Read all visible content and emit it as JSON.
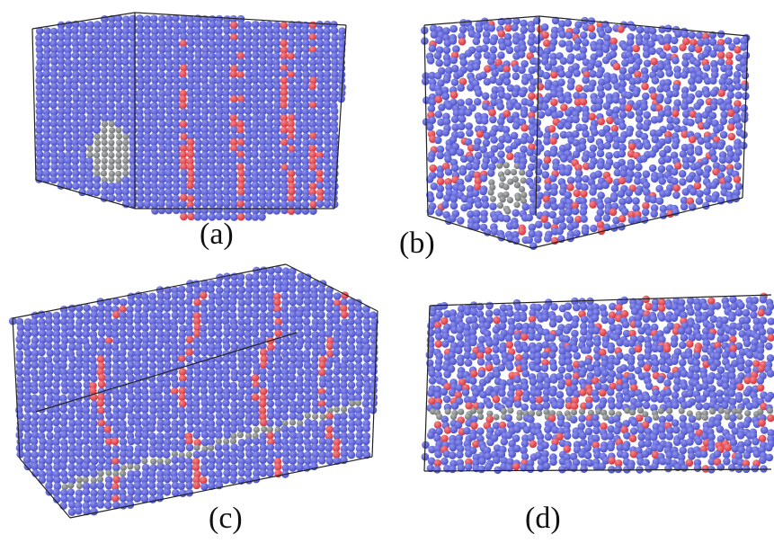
{
  "panels": [
    {
      "id": "a",
      "label": "(a)"
    },
    {
      "id": "b",
      "label": "(b)"
    },
    {
      "id": "c",
      "label": "(c)"
    },
    {
      "id": "d",
      "label": "(d)"
    }
  ],
  "colors": {
    "matrix_atom": "#4a4fc8",
    "matrix_atom_highlight": "#8f93ee",
    "boundary_atom": "#d8313a",
    "inclusion_atom": "#6d7070",
    "box_edge": "#222222",
    "label_text": "#111111"
  }
}
